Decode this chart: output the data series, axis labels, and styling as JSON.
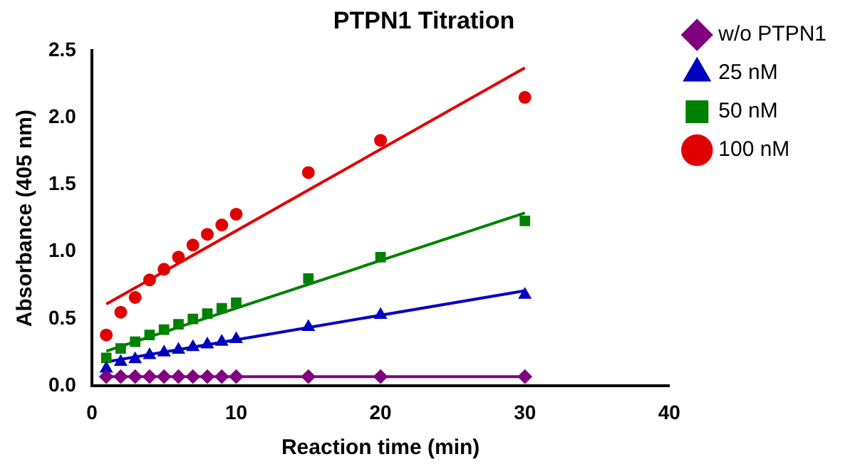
{
  "chart_data": {
    "type": "scatter",
    "title": "PTPN1 Titration",
    "xlabel": "Reaction time (min)",
    "ylabel": "Absorbance (405 nm)",
    "xlim": [
      0,
      40
    ],
    "xticks": [
      0,
      10,
      20,
      30,
      40
    ],
    "ylim": [
      0,
      2.5
    ],
    "yticks": [
      {
        "value": 0,
        "label": "0.0"
      },
      {
        "value": 0.5,
        "label": "0.5"
      },
      {
        "value": 1,
        "label": "1.0"
      },
      {
        "value": 1.5,
        "label": "1.5"
      },
      {
        "value": 2,
        "label": "2.0"
      },
      {
        "value": 2.5,
        "label": "2.5"
      }
    ],
    "grid": false,
    "legend": "right",
    "series": [
      {
        "name": "w/o PTPN1",
        "color": "#800080",
        "marker": "diamond",
        "x": [
          1,
          2,
          3,
          4,
          5,
          6,
          7,
          8,
          9,
          10,
          15,
          20,
          30
        ],
        "values": [
          0.07,
          0.07,
          0.07,
          0.07,
          0.07,
          0.07,
          0.07,
          0.07,
          0.07,
          0.07,
          0.07,
          0.07,
          0.07
        ]
      },
      {
        "name": "25 nM",
        "color": "#0000c0",
        "marker": "triangle",
        "x": [
          1,
          2,
          3,
          4,
          5,
          6,
          7,
          8,
          9,
          10,
          15,
          20,
          30
        ],
        "values": [
          0.13,
          0.18,
          0.2,
          0.23,
          0.25,
          0.27,
          0.29,
          0.31,
          0.33,
          0.35,
          0.44,
          0.53,
          0.68
        ]
      },
      {
        "name": "50 nM",
        "color": "#008000",
        "marker": "square",
        "x": [
          1,
          2,
          3,
          4,
          5,
          6,
          7,
          8,
          9,
          10,
          15,
          20,
          30
        ],
        "values": [
          0.21,
          0.28,
          0.33,
          0.38,
          0.42,
          0.46,
          0.5,
          0.54,
          0.58,
          0.62,
          0.8,
          0.96,
          1.23
        ]
      },
      {
        "name": "100 nM",
        "color": "#e00000",
        "marker": "circle",
        "x": [
          1,
          2,
          3,
          4,
          5,
          6,
          7,
          8,
          9,
          10,
          15,
          20,
          30
        ],
        "values": [
          0.38,
          0.55,
          0.66,
          0.79,
          0.87,
          0.96,
          1.05,
          1.13,
          1.2,
          1.28,
          1.59,
          1.83,
          2.15
        ]
      },
      {
        "type": "line",
        "color": "#800080",
        "x": [
          1,
          30
        ],
        "values": [
          0.07,
          0.07
        ]
      },
      {
        "type": "line",
        "color": "#0000c0",
        "x": [
          1,
          30
        ],
        "values": [
          0.18,
          0.71
        ]
      },
      {
        "type": "line",
        "color": "#008000",
        "x": [
          1,
          30
        ],
        "values": [
          0.26,
          1.29
        ]
      },
      {
        "type": "line",
        "color": "#e00000",
        "x": [
          1,
          30
        ],
        "values": [
          0.61,
          2.37
        ]
      }
    ]
  }
}
